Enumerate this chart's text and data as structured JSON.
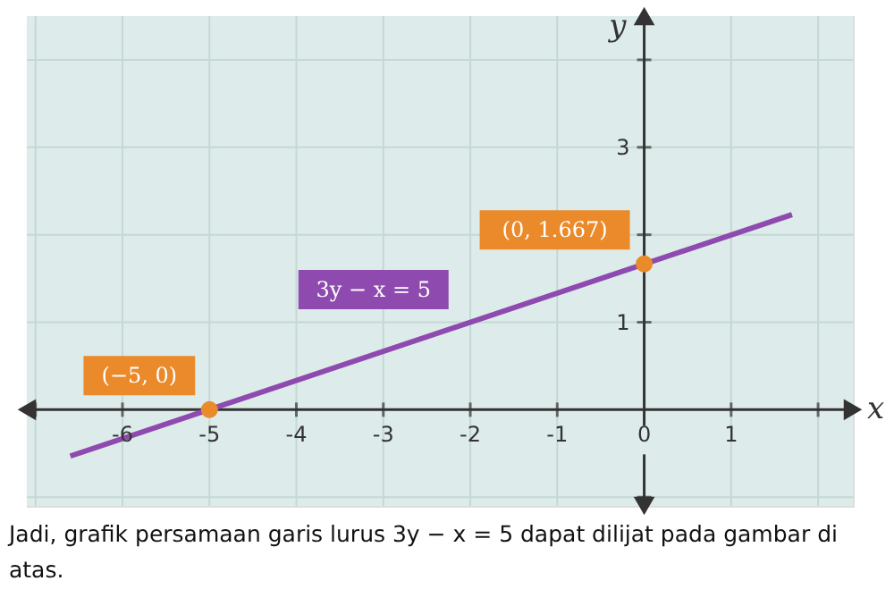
{
  "chart_data": {
    "type": "line",
    "xlabel": "x",
    "ylabel": "y",
    "xlim": [
      -7.1,
      2.4
    ],
    "ylim": [
      -1.1,
      4.5
    ],
    "xticks": [
      {
        "value": -7,
        "label": null
      },
      -6,
      -5,
      -4,
      -3,
      -2,
      -1,
      0,
      1,
      {
        "value": 2,
        "label": null
      }
    ],
    "yticks": [
      {
        "value": -1,
        "label": null
      },
      {
        "value": 0,
        "label": null
      },
      1,
      {
        "value": 2,
        "label": null
      },
      3,
      {
        "value": 4,
        "label": null
      }
    ],
    "grid": true,
    "series": [
      {
        "name": "3y − x = 5",
        "color": "#8e4aae",
        "x": [
          -6.6,
          1.7
        ],
        "values": [
          -0.53,
          2.23
        ],
        "marker": "none"
      },
      {
        "type": "scatter",
        "color": "#ea8a2a",
        "x": [
          -5,
          0
        ],
        "values": [
          0,
          1.667
        ],
        "marker": "circle"
      }
    ],
    "annotations": [
      {
        "text": "(−5, 0)",
        "x": -5,
        "y": 0
      },
      {
        "text": "(0, 1.667)",
        "x": 0,
        "y": 1.667
      },
      "Jadi, grafik persamaan garis lurus 3y − x = 5 dapat dilijat pada gambar di atas."
    ]
  }
}
